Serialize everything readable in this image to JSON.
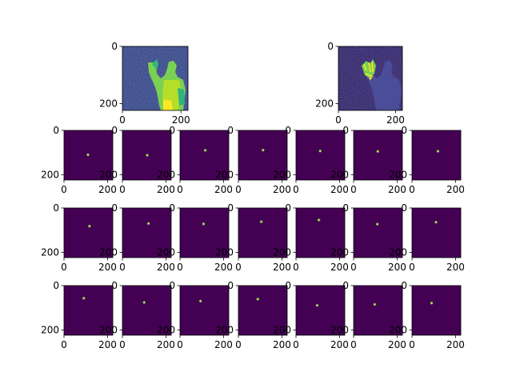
{
  "chart_data": {
    "type": "heatmap",
    "description_of_layout": "",
    "colormap": "viridis",
    "colors": {
      "low": "#440154",
      "mid_low": "#3b528b",
      "mid": "#21918c",
      "high": "#5ec962",
      "peak": "#fde725"
    },
    "image_size": [
      224,
      224
    ],
    "xticks": [
      0,
      200
    ],
    "yticks": [
      0,
      200
    ],
    "panels": [
      {
        "row": 0,
        "col": 0,
        "kind": "depth",
        "subject": "person-raised-hand-depth",
        "xticks": [
          "0",
          "200"
        ],
        "yticks": [
          "0",
          "200"
        ]
      },
      {
        "row": 0,
        "col": 1,
        "kind": "overlay",
        "subject": "person-with-hand-keypoints",
        "xticks": [
          "0",
          "200"
        ],
        "yticks": [
          "0",
          "200"
        ]
      }
    ],
    "heatmaps": [
      {
        "row": 1,
        "col": 0,
        "peak": [
          110,
          110
        ]
      },
      {
        "row": 1,
        "col": 1,
        "peak": [
          114,
          112
        ]
      },
      {
        "row": 1,
        "col": 2,
        "peak": [
          116,
          90
        ]
      },
      {
        "row": 1,
        "col": 3,
        "peak": [
          113,
          89
        ]
      },
      {
        "row": 1,
        "col": 4,
        "peak": [
          111,
          93
        ]
      },
      {
        "row": 1,
        "col": 5,
        "peak": [
          111,
          95
        ]
      },
      {
        "row": 1,
        "col": 6,
        "peak": [
          119,
          94
        ]
      },
      {
        "row": 2,
        "col": 0,
        "peak": [
          117,
          82
        ]
      },
      {
        "row": 2,
        "col": 1,
        "peak": [
          120,
          70
        ]
      },
      {
        "row": 2,
        "col": 2,
        "peak": [
          108,
          72
        ]
      },
      {
        "row": 2,
        "col": 3,
        "peak": [
          105,
          62
        ]
      },
      {
        "row": 2,
        "col": 4,
        "peak": [
          105,
          54
        ]
      },
      {
        "row": 2,
        "col": 5,
        "peak": [
          109,
          73
        ]
      },
      {
        "row": 2,
        "col": 6,
        "peak": [
          110,
          64
        ]
      },
      {
        "row": 3,
        "col": 0,
        "peak": [
          91,
          57
        ]
      },
      {
        "row": 3,
        "col": 1,
        "peak": [
          100,
          76
        ]
      },
      {
        "row": 3,
        "col": 2,
        "peak": [
          94,
          70
        ]
      },
      {
        "row": 3,
        "col": 3,
        "peak": [
          89,
          61
        ]
      },
      {
        "row": 3,
        "col": 4,
        "peak": [
          97,
          89
        ]
      },
      {
        "row": 3,
        "col": 5,
        "peak": [
          97,
          85
        ]
      },
      {
        "row": 3,
        "col": 6,
        "peak": [
          90,
          79
        ]
      }
    ]
  }
}
